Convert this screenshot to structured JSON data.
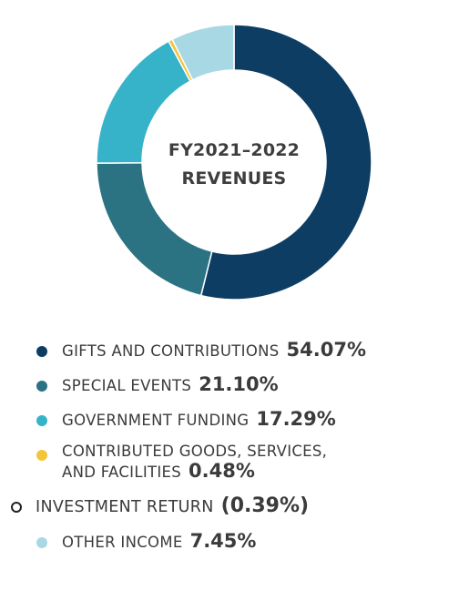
{
  "chart_data": {
    "type": "pie",
    "title_lines": [
      "FY2021–2022",
      "REVENUES"
    ],
    "slices": [
      {
        "label": "GIFTS AND CONTRIBUTIONS",
        "value": 54.07,
        "display": "54.07%",
        "color": "#0d3d63"
      },
      {
        "label": "SPECIAL EVENTS",
        "value": 21.1,
        "display": "21.10%",
        "color": "#2b7382"
      },
      {
        "label": "GOVERNMENT FUNDING",
        "value": 17.29,
        "display": "17.29%",
        "color": "#36b3c9"
      },
      {
        "label_lines": [
          "CONTRIBUTED GOODS, SERVICES,",
          "AND FACILITIES"
        ],
        "value": 0.48,
        "display": "0.48%",
        "color": "#f4c43b"
      },
      {
        "label": "OTHER INCOME",
        "value": 7.45,
        "display": "7.45%",
        "color": "#a7d8e4"
      }
    ],
    "investment_return": {
      "label": "INVESTMENT RETURN",
      "value": -0.39,
      "display": "(0.39%)",
      "marker": "hollow"
    }
  }
}
